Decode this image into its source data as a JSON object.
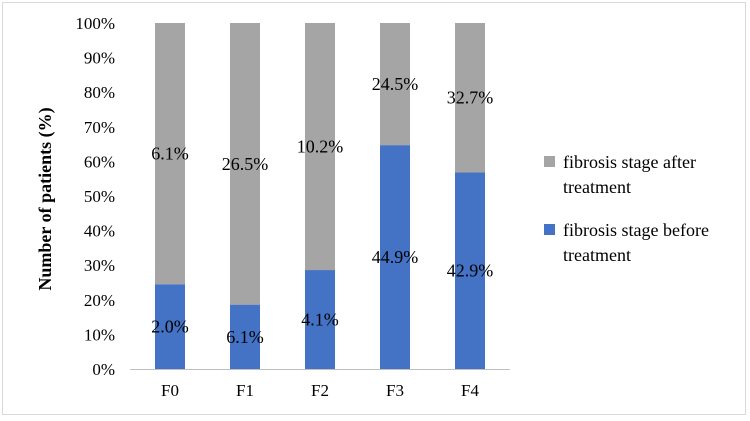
{
  "chart_data": {
    "type": "bar",
    "stacked": true,
    "normalized_percent": true,
    "categories": [
      "F0",
      "F1",
      "F2",
      "F3",
      "F4"
    ],
    "series": [
      {
        "name": "fibrosis stage before treatment",
        "color": "#4472c4",
        "share_pct": [
          24.5,
          18.6,
          28.6,
          64.7,
          56.8
        ],
        "labels": [
          "2.0%",
          "6.1%",
          "4.1%",
          "44.9%",
          "42.9%"
        ]
      },
      {
        "name": "fibrosis stage after treatment",
        "color": "#a5a5a5",
        "share_pct": [
          75.5,
          81.4,
          71.4,
          35.3,
          43.2
        ],
        "labels": [
          "6.1%",
          "26.5%",
          "10.2%",
          "24.5%",
          "32.7%"
        ]
      }
    ],
    "ylabel": "Number of patients (%)",
    "ylim": [
      0,
      100
    ],
    "yticks": [
      "0%",
      "10%",
      "20%",
      "30%",
      "40%",
      "50%",
      "60%",
      "70%",
      "80%",
      "90%",
      "100%"
    ],
    "grid": false,
    "legend": {
      "placement": "right",
      "entries": [
        {
          "lines": [
            "fibrosis stage after",
            "treatment"
          ],
          "color": "#a5a5a5"
        },
        {
          "lines": [
            "fibrosis stage before",
            "treatment"
          ],
          "color": "#4472c4"
        }
      ]
    }
  }
}
